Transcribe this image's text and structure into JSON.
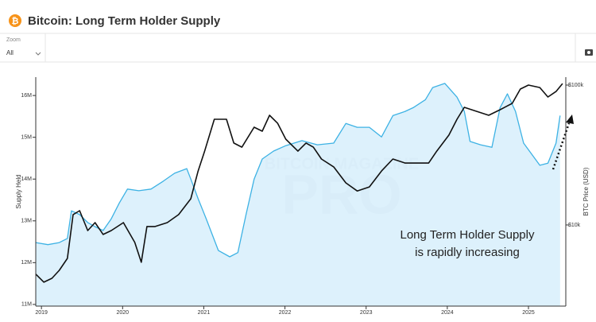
{
  "header": {
    "title": "Bitcoin: Long Term Holder Supply"
  },
  "toolbar": {
    "zoom_label": "Zoom",
    "zoom_value": "All"
  },
  "chart_data": {
    "type": "line",
    "y_label": "Supply Held",
    "y2_label": "BTC Price (USD)",
    "watermark": [
      "BITCOIN MAGAZINE",
      "PRO"
    ],
    "annotation": [
      "Long Term Holder Supply",
      "is rapidly increasing"
    ],
    "xlim": [
      2018.93,
      2025.46
    ],
    "xticks": [
      2019,
      2020,
      2021,
      2022,
      2023,
      2024,
      2025
    ],
    "ylim": [
      10960000,
      16440000
    ],
    "yticks": [
      {
        "value": 11000000,
        "label": "11M"
      },
      {
        "value": 12000000,
        "label": "12M"
      },
      {
        "value": 13000000,
        "label": "13M"
      },
      {
        "value": 14000000,
        "label": "14M"
      },
      {
        "value": 15000000,
        "label": "15M"
      },
      {
        "value": 16000000,
        "label": "16M"
      }
    ],
    "y2lim": [
      2630,
      114000
    ],
    "y2ticks": [
      {
        "value": 10000,
        "label": "$10k"
      },
      {
        "value": 100000,
        "label": "$100k"
      }
    ],
    "y2_log": true,
    "series": [
      {
        "name": "Long Term Holder Supply",
        "color": "#3db2e4",
        "fill": "#d7effb",
        "x": [
          2018.93,
          2019.08,
          2019.22,
          2019.32,
          2019.37,
          2019.47,
          2019.57,
          2019.66,
          2019.76,
          2019.86,
          2019.96,
          2020.06,
          2020.2,
          2020.35,
          2020.5,
          2020.64,
          2020.79,
          2020.84,
          2020.93,
          2021.03,
          2021.18,
          2021.32,
          2021.42,
          2021.52,
          2021.62,
          2021.72,
          2021.86,
          2022.01,
          2022.21,
          2022.4,
          2022.6,
          2022.75,
          2022.89,
          2023.04,
          2023.19,
          2023.33,
          2023.48,
          2023.58,
          2023.73,
          2023.82,
          2023.97,
          2024.12,
          2024.21,
          2024.28,
          2024.41,
          2024.55,
          2024.65,
          2024.74,
          2024.84,
          2024.94,
          2025.14,
          2025.24,
          2025.34,
          2025.39
        ],
        "values": [
          12480000,
          12430000,
          12480000,
          12580000,
          13240000,
          13150000,
          12960000,
          12860000,
          12770000,
          13050000,
          13430000,
          13760000,
          13720000,
          13760000,
          13950000,
          14140000,
          14250000,
          14000000,
          13530000,
          13050000,
          12290000,
          12140000,
          12240000,
          13150000,
          14000000,
          14480000,
          14670000,
          14800000,
          14920000,
          14820000,
          14860000,
          15330000,
          15240000,
          15240000,
          15010000,
          15520000,
          15620000,
          15710000,
          15900000,
          16190000,
          16290000,
          15960000,
          15620000,
          14900000,
          14820000,
          14760000,
          15710000,
          16040000,
          15620000,
          14860000,
          14330000,
          14380000,
          14860000,
          15520000
        ]
      },
      {
        "name": "BTC Price",
        "color": "#111111",
        "axis": "y2",
        "x": [
          2018.93,
          2019.03,
          2019.13,
          2019.22,
          2019.32,
          2019.39,
          2019.47,
          2019.57,
          2019.66,
          2019.76,
          2019.86,
          2020.01,
          2020.15,
          2020.23,
          2020.3,
          2020.4,
          2020.55,
          2020.69,
          2020.84,
          2020.93,
          2021.01,
          2021.13,
          2021.28,
          2021.37,
          2021.47,
          2021.62,
          2021.72,
          2021.81,
          2021.91,
          2022.01,
          2022.16,
          2022.26,
          2022.35,
          2022.45,
          2022.6,
          2022.75,
          2022.89,
          2023.04,
          2023.19,
          2023.33,
          2023.48,
          2023.63,
          2023.77,
          2023.87,
          2024.02,
          2024.12,
          2024.21,
          2024.36,
          2024.51,
          2024.65,
          2024.8,
          2024.9,
          2025.0,
          2025.14,
          2025.24,
          2025.34,
          2025.42
        ],
        "values": [
          4450,
          3900,
          4160,
          4740,
          5770,
          11860,
          12650,
          9120,
          10400,
          8550,
          9120,
          10400,
          7500,
          5410,
          9750,
          9750,
          10400,
          11860,
          15400,
          24300,
          33700,
          57000,
          57000,
          38500,
          36000,
          50000,
          46800,
          60800,
          53300,
          41100,
          33700,
          38500,
          36000,
          29600,
          26000,
          20000,
          17500,
          18700,
          24300,
          29600,
          27700,
          27700,
          27700,
          33700,
          43900,
          57000,
          69300,
          64900,
          60800,
          66700,
          74000,
          93700,
          100000,
          96100,
          82200,
          90000,
          102600
        ]
      }
    ]
  }
}
